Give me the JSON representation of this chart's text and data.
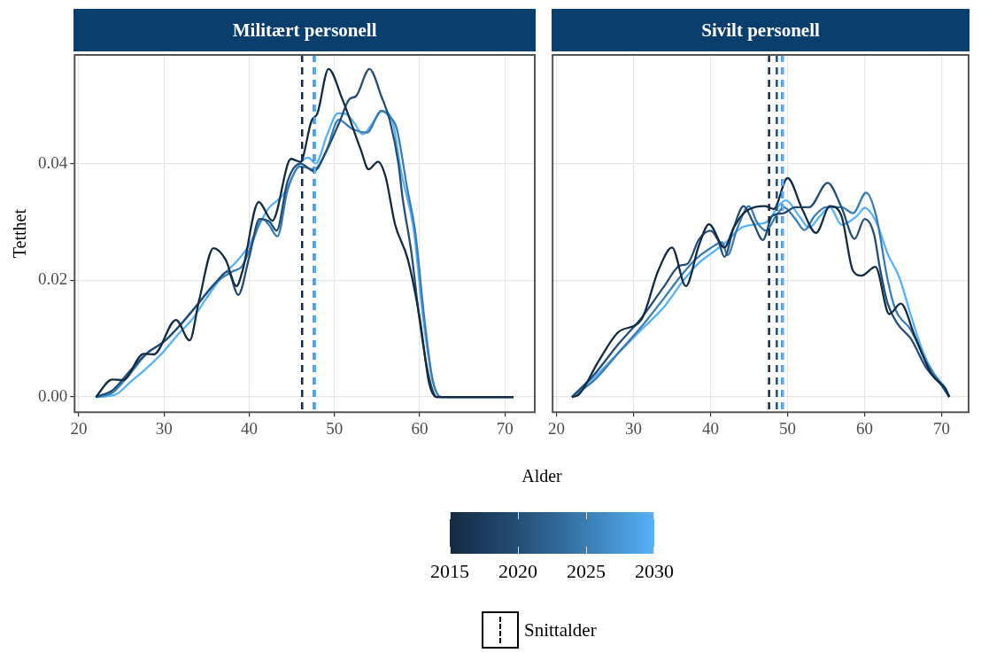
{
  "chart_data": [
    {
      "type": "line",
      "title": "Militært personell",
      "ylabel": "Tetthet",
      "xlabel": "Alder",
      "clim": [
        2015,
        2030
      ],
      "cticks": [
        2015,
        2020,
        2025,
        2030
      ],
      "annotations": [
        "Snittalder"
      ],
      "grid": true,
      "xlim": [
        19.5,
        73.5
      ],
      "xticks": [
        20,
        30,
        40,
        50,
        60,
        70
      ],
      "ylim": [
        -0.0026,
        0.0586
      ],
      "yticks": [
        {
          "value": 0,
          "label": "0.00"
        },
        {
          "value": 0.02,
          "label": "0.02"
        },
        {
          "value": 0.04,
          "label": "0.04"
        }
      ],
      "series": [
        {
          "color": "#132b43",
          "x": [
            22,
            23.9,
            25.2,
            27.6,
            28.8,
            31.4,
            33,
            34.1,
            35.8,
            37.2,
            38.5,
            39.2,
            41.1,
            42.7,
            44.9,
            46,
            47.3,
            48,
            49.3,
            50.9,
            53.1,
            54,
            55.1,
            56,
            57.1,
            58.6,
            60,
            61.1,
            62,
            71
          ],
          "values": [
            0,
            0.003,
            0.0029,
            0.0074,
            0.0073,
            0.0132,
            0.0097,
            0.0165,
            0.0255,
            0.0236,
            0.019,
            0.0216,
            0.0334,
            0.0302,
            0.0408,
            0.0403,
            0.0473,
            0.0486,
            0.0562,
            0.0511,
            0.0423,
            0.039,
            0.0403,
            0.0377,
            0.0296,
            0.0236,
            0.0135,
            0.0024,
            0,
            0
          ]
        },
        {
          "color": "#254e75",
          "x": [
            22,
            24,
            26,
            28,
            30,
            32,
            34,
            36,
            37.5,
            38.7,
            40,
            41.2,
            42.4,
            43.2,
            44.5,
            46,
            47.6,
            49,
            50.5,
            51.8,
            52.5,
            54.1,
            55.5,
            56.5,
            57.5,
            58,
            59,
            60,
            61,
            62,
            71
          ],
          "values": [
            0,
            0.0012,
            0.0045,
            0.0075,
            0.0095,
            0.0125,
            0.016,
            0.0195,
            0.0215,
            0.0175,
            0.024,
            0.0305,
            0.03,
            0.0285,
            0.037,
            0.04,
            0.0387,
            0.042,
            0.0468,
            0.0511,
            0.0515,
            0.0562,
            0.0515,
            0.0473,
            0.04,
            0.034,
            0.025,
            0.013,
            0.004,
            0,
            0
          ]
        },
        {
          "color": "#3a7db3",
          "x": [
            22,
            24,
            26,
            28,
            30,
            32,
            34,
            36,
            38,
            39.2,
            40.5,
            41.5,
            42.3,
            43.3,
            44.5,
            46,
            47.6,
            49,
            50.5,
            52,
            53.8,
            55.5,
            56.5,
            57.3,
            58.5,
            59.5,
            60.5,
            61.5,
            62.5,
            71
          ],
          "values": [
            0,
            0.0008,
            0.004,
            0.0075,
            0.0095,
            0.0125,
            0.016,
            0.0195,
            0.0215,
            0.0225,
            0.027,
            0.0305,
            0.0295,
            0.0275,
            0.0355,
            0.0395,
            0.039,
            0.042,
            0.0475,
            0.046,
            0.0453,
            0.049,
            0.048,
            0.046,
            0.036,
            0.028,
            0.014,
            0.003,
            0,
            0
          ]
        },
        {
          "color": "#56b1f7",
          "x": [
            22,
            24.3,
            26,
            28,
            29.7,
            31.5,
            33.4,
            35,
            37,
            38.5,
            39.8,
            41,
            42.2,
            44,
            45.8,
            46.9,
            47.8,
            49.1,
            50.4,
            51.3,
            52.3,
            53.3,
            54.5,
            55.5,
            56.4,
            57,
            57.8,
            59.3,
            60.4,
            61.5,
            62.5,
            71
          ],
          "values": [
            0,
            0.0004,
            0.0025,
            0.005,
            0.0074,
            0.0105,
            0.0135,
            0.017,
            0.021,
            0.0232,
            0.0256,
            0.029,
            0.0322,
            0.0347,
            0.0397,
            0.041,
            0.04,
            0.0448,
            0.0486,
            0.0485,
            0.047,
            0.045,
            0.047,
            0.049,
            0.0485,
            0.046,
            0.0387,
            0.0286,
            0.0135,
            0.003,
            0,
            0
          ]
        }
      ],
      "ref_lines": [
        {
          "axis": "x",
          "value": 46.2,
          "color": "#132b43",
          "line_style": "dashed"
        },
        {
          "axis": "x",
          "value": 47.6,
          "color": "#254e75",
          "line_style": "dashed"
        },
        {
          "axis": "x",
          "value": 47.7,
          "color": "#3a7db3",
          "line_style": "dashed"
        },
        {
          "axis": "x",
          "value": 47.7,
          "color": "#56b1f7",
          "line_style": "dashed"
        }
      ]
    },
    {
      "type": "line",
      "title": "Sivilt personell",
      "grid": true,
      "tick_labels": "x",
      "xlim": [
        19.5,
        73.5
      ],
      "xticks": [
        20,
        30,
        40,
        50,
        60,
        70
      ],
      "ylim": [
        -0.0026,
        0.0586
      ],
      "yticks": [
        0,
        0.02,
        0.04
      ],
      "series": [
        {
          "color": "#132b43",
          "x": [
            22,
            22.9,
            25.5,
            28.1,
            31,
            33.2,
            35,
            36.8,
            38.5,
            39.8,
            41.8,
            43,
            44.5,
            47.1,
            48.2,
            50,
            51.9,
            53.7,
            55.5,
            57,
            58.5,
            59.6,
            61.4,
            63.2,
            64.7,
            66.5,
            68.7,
            70.5,
            71
          ],
          "values": [
            0,
            0.0004,
            0.0062,
            0.0112,
            0.0132,
            0.0216,
            0.0256,
            0.019,
            0.026,
            0.0296,
            0.0256,
            0.029,
            0.0317,
            0.0327,
            0.0322,
            0.0375,
            0.0322,
            0.0281,
            0.0327,
            0.031,
            0.0216,
            0.0208,
            0.0223,
            0.0142,
            0.016,
            0.0105,
            0.0039,
            0.0014,
            0
          ]
        },
        {
          "color": "#254e75",
          "x": [
            22,
            25,
            28,
            31,
            34,
            36,
            37,
            38.5,
            40,
            41,
            41.8,
            43,
            44.3,
            45.5,
            46.8,
            48,
            49.5,
            51,
            52.8,
            55.2,
            57,
            58.7,
            60,
            61.2,
            62,
            63,
            64.3,
            66,
            68,
            70,
            71
          ],
          "values": [
            0,
            0.004,
            0.009,
            0.0135,
            0.019,
            0.0225,
            0.0228,
            0.027,
            0.0285,
            0.0268,
            0.024,
            0.029,
            0.0327,
            0.03,
            0.0269,
            0.031,
            0.0315,
            0.0325,
            0.0325,
            0.0367,
            0.0325,
            0.0271,
            0.0305,
            0.028,
            0.022,
            0.016,
            0.0125,
            0.01,
            0.005,
            0.002,
            0
          ]
        },
        {
          "color": "#3a7db3",
          "x": [
            22,
            25,
            28,
            31,
            34,
            36,
            38,
            40,
            41.5,
            42.2,
            43.5,
            45,
            46,
            47.2,
            48.5,
            49.5,
            51,
            52.2,
            53.5,
            55,
            57,
            58.5,
            60.2,
            61.5,
            63,
            64,
            66,
            68,
            70,
            71
          ],
          "values": [
            0,
            0.003,
            0.0075,
            0.012,
            0.017,
            0.0205,
            0.0235,
            0.0255,
            0.0265,
            0.0243,
            0.029,
            0.0327,
            0.03,
            0.0285,
            0.031,
            0.0325,
            0.0305,
            0.0286,
            0.031,
            0.0325,
            0.0325,
            0.0315,
            0.035,
            0.031,
            0.02,
            0.015,
            0.0115,
            0.006,
            0.002,
            0
          ]
        },
        {
          "color": "#56b1f7",
          "x": [
            22,
            25,
            28,
            31,
            34,
            36.5,
            38.5,
            40,
            42,
            44,
            46,
            47.3,
            49,
            49.8,
            51.5,
            52.8,
            54.2,
            55.5,
            57,
            59,
            60,
            61.5,
            63,
            64.5,
            66,
            67.5,
            69,
            70.5,
            71
          ],
          "values": [
            0,
            0.0035,
            0.0075,
            0.0115,
            0.0155,
            0.02,
            0.023,
            0.0245,
            0.0265,
            0.029,
            0.0296,
            0.03,
            0.033,
            0.0337,
            0.031,
            0.029,
            0.031,
            0.0325,
            0.0295,
            0.031,
            0.0324,
            0.03,
            0.0245,
            0.0205,
            0.014,
            0.008,
            0.004,
            0.0015,
            0
          ]
        }
      ],
      "ref_lines": [
        {
          "axis": "x",
          "value": 47.6,
          "color": "#132b43",
          "line_style": "dashed"
        },
        {
          "axis": "x",
          "value": 48.6,
          "color": "#254e75",
          "line_style": "dashed"
        },
        {
          "axis": "x",
          "value": 49.3,
          "color": "#3a7db3",
          "line_style": "dashed"
        },
        {
          "axis": "x",
          "value": 49.4,
          "color": "#56b1f7",
          "line_style": "dashed"
        }
      ]
    }
  ]
}
